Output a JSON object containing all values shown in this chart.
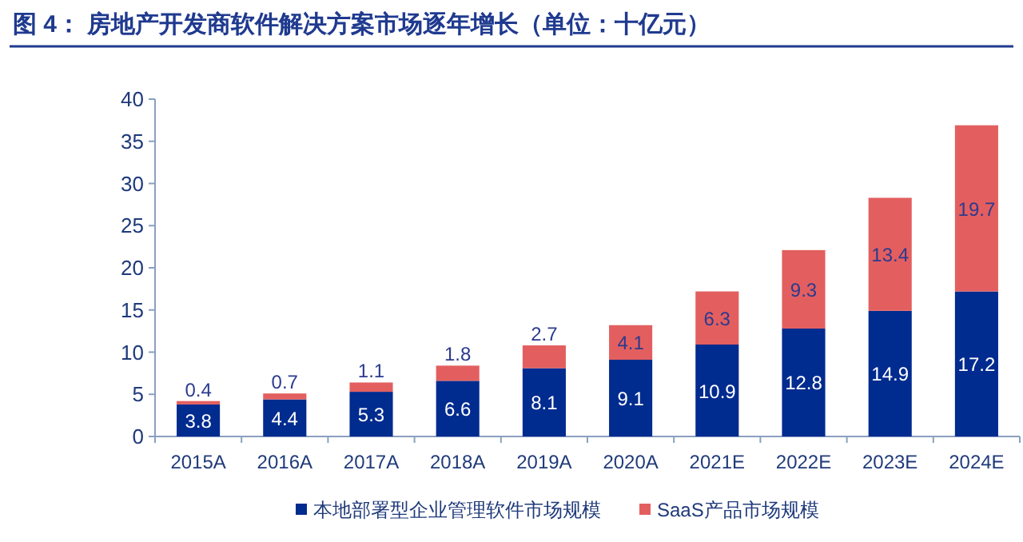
{
  "chart_data": {
    "type": "bar",
    "title": "图 4： 房地产开发商软件解决方案市场逐年增长（单位：十亿元）",
    "categories": [
      "2015A",
      "2016A",
      "2017A",
      "2018A",
      "2019A",
      "2020A",
      "2021E",
      "2022E",
      "2023E",
      "2024E"
    ],
    "stacked": true,
    "data_labels": true,
    "ylim": [
      0,
      40
    ],
    "yticks": [
      0,
      5,
      10,
      15,
      20,
      25,
      30,
      35,
      40
    ],
    "grid": false,
    "legend": "bottom",
    "series": [
      {
        "name": "本地部署型企业管理软件市场规模",
        "color": "#002b8f",
        "values": [
          3.8,
          4.4,
          5.3,
          6.6,
          8.1,
          9.1,
          10.9,
          12.8,
          14.9,
          17.2
        ]
      },
      {
        "name": "SaaS产品市场规模",
        "color": "#e35f5f",
        "values": [
          0.4,
          0.7,
          1.1,
          1.8,
          2.7,
          4.1,
          6.3,
          9.3,
          13.4,
          19.7
        ]
      }
    ]
  }
}
